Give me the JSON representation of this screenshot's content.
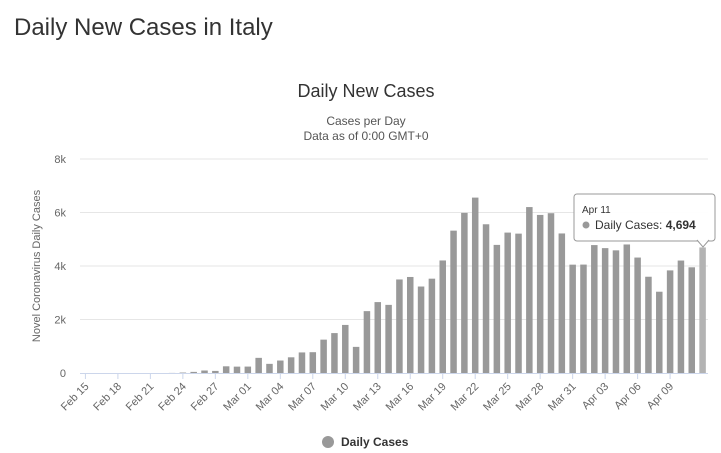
{
  "page": {
    "title": "Daily New Cases in Italy"
  },
  "chart_data": {
    "type": "bar",
    "title": "Daily New Cases",
    "subtitle_lines": [
      "Cases per Day",
      "Data as of 0:00 GMT+0"
    ],
    "ylabel": "Novel Coronavirus Daily Cases",
    "xlabel": "",
    "ylim": [
      0,
      8000
    ],
    "yticks": [
      0,
      2000,
      4000,
      6000,
      8000
    ],
    "ytick_labels": [
      "0",
      "2k",
      "4k",
      "6k",
      "8k"
    ],
    "x_tick_labels": [
      "Feb 15",
      "Feb 18",
      "Feb 21",
      "Feb 24",
      "Feb 27",
      "Mar 01",
      "Mar 04",
      "Mar 07",
      "Mar 10",
      "Mar 13",
      "Mar 16",
      "Mar 19",
      "Mar 22",
      "Mar 25",
      "Mar 28",
      "Mar 31",
      "Apr 03",
      "Apr 06",
      "Apr 09"
    ],
    "first_date": "Feb 15",
    "color": "#999999",
    "legend_position": "bottom-center",
    "grid": true,
    "series": [
      {
        "name": "Daily Cases",
        "values": [
          0,
          0,
          0,
          0,
          0,
          0,
          0,
          0,
          3,
          17,
          42,
          93,
          78,
          250,
          238,
          240,
          566,
          342,
          466,
          587,
          769,
          778,
          1247,
          1492,
          1797,
          977,
          2313,
          2651,
          2547,
          3497,
          3590,
          3233,
          3526,
          4207,
          5322,
          5986,
          6557,
          5560,
          4789,
          5249,
          5210,
          6203,
          5909,
          5974,
          5217,
          4050,
          4053,
          4782,
          4668,
          4585,
          4805,
          4316,
          3599,
          3039,
          3836,
          4204,
          3951,
          4694
        ]
      }
    ],
    "tooltip": {
      "date": "Apr 11",
      "label": "Daily Cases: ",
      "value": "4,694"
    }
  }
}
